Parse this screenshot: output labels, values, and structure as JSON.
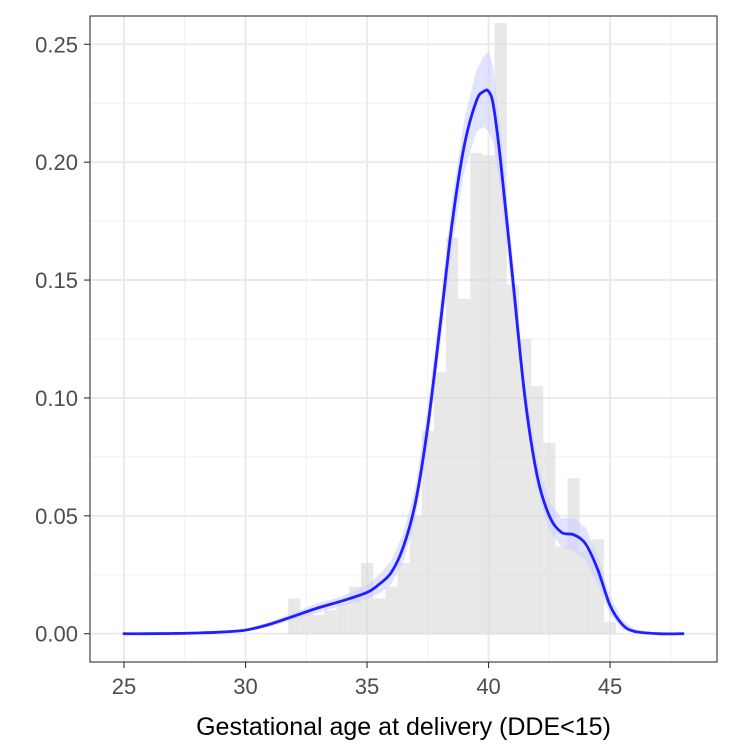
{
  "chart_data": {
    "type": "histogram",
    "title": "",
    "xlabel": "Gestational age at delivery (DDE<15)",
    "ylabel": "",
    "xlim": [
      23.6,
      49.4
    ],
    "ylim": [
      -0.012,
      0.262
    ],
    "x_ticks": [
      25,
      30,
      35,
      40,
      45
    ],
    "x_tick_labels": [
      "25",
      "30",
      "35",
      "40",
      "45"
    ],
    "y_ticks": [
      0.0,
      0.05,
      0.1,
      0.15,
      0.2,
      0.25
    ],
    "y_tick_labels": [
      "0.00",
      "0.05",
      "0.10",
      "0.15",
      "0.20",
      "0.25"
    ],
    "grid": true,
    "histogram": {
      "bin_width": 0.5,
      "color": "#d9d9d9",
      "bins": [
        {
          "x0": 31.75,
          "x1": 32.25,
          "value": 0.015
        },
        {
          "x0": 32.25,
          "x1": 32.75,
          "value": 0.01
        },
        {
          "x0": 32.75,
          "x1": 33.25,
          "value": 0.008
        },
        {
          "x0": 33.25,
          "x1": 33.75,
          "value": 0.01
        },
        {
          "x0": 33.75,
          "x1": 34.25,
          "value": 0.013
        },
        {
          "x0": 34.25,
          "x1": 34.75,
          "value": 0.02
        },
        {
          "x0": 34.75,
          "x1": 35.25,
          "value": 0.03
        },
        {
          "x0": 35.25,
          "x1": 35.75,
          "value": 0.015
        },
        {
          "x0": 35.75,
          "x1": 36.25,
          "value": 0.02
        },
        {
          "x0": 36.25,
          "x1": 36.75,
          "value": 0.03
        },
        {
          "x0": 36.75,
          "x1": 37.25,
          "value": 0.05
        },
        {
          "x0": 37.25,
          "x1": 37.75,
          "value": 0.086
        },
        {
          "x0": 37.75,
          "x1": 38.25,
          "value": 0.111
        },
        {
          "x0": 38.25,
          "x1": 38.75,
          "value": 0.168
        },
        {
          "x0": 38.75,
          "x1": 39.25,
          "value": 0.142
        },
        {
          "x0": 39.25,
          "x1": 39.75,
          "value": 0.204
        },
        {
          "x0": 39.75,
          "x1": 40.25,
          "value": 0.203
        },
        {
          "x0": 40.25,
          "x1": 40.75,
          "value": 0.259
        },
        {
          "x0": 40.75,
          "x1": 41.25,
          "value": 0.148
        },
        {
          "x0": 41.25,
          "x1": 41.75,
          "value": 0.125
        },
        {
          "x0": 41.75,
          "x1": 42.25,
          "value": 0.105
        },
        {
          "x0": 42.25,
          "x1": 42.75,
          "value": 0.081
        },
        {
          "x0": 42.75,
          "x1": 43.25,
          "value": 0.037
        },
        {
          "x0": 43.25,
          "x1": 43.75,
          "value": 0.066
        },
        {
          "x0": 43.75,
          "x1": 44.25,
          "value": 0.035
        },
        {
          "x0": 44.25,
          "x1": 44.75,
          "value": 0.04
        },
        {
          "x0": 44.75,
          "x1": 45.25,
          "value": 0.005
        }
      ]
    },
    "density": {
      "color": "#1f1fff",
      "band_color": "#c9ccff",
      "x": [
        25,
        26,
        27,
        28,
        29,
        30,
        31,
        32,
        33,
        34,
        35,
        35.5,
        36,
        36.5,
        37,
        37.5,
        38,
        38.5,
        39,
        39.5,
        39.8,
        40,
        40.2,
        40.5,
        41,
        41.5,
        42,
        42.5,
        43,
        43.5,
        44,
        44.5,
        45,
        45.5,
        46,
        47,
        48
      ],
      "y": [
        0.0,
        0.0,
        0.0001,
        0.0003,
        0.0007,
        0.0015,
        0.004,
        0.0075,
        0.011,
        0.014,
        0.0175,
        0.021,
        0.026,
        0.037,
        0.056,
        0.088,
        0.13,
        0.174,
        0.207,
        0.226,
        0.23,
        0.23,
        0.224,
        0.2,
        0.15,
        0.1,
        0.067,
        0.05,
        0.043,
        0.042,
        0.038,
        0.027,
        0.012,
        0.004,
        0.001,
        0.0,
        0.0
      ],
      "lower": [
        0.0,
        0.0,
        0.0,
        0.0002,
        0.0005,
        0.0011,
        0.003,
        0.006,
        0.009,
        0.012,
        0.0145,
        0.017,
        0.021,
        0.031,
        0.049,
        0.08,
        0.121,
        0.164,
        0.196,
        0.213,
        0.215,
        0.213,
        0.208,
        0.188,
        0.141,
        0.093,
        0.061,
        0.044,
        0.037,
        0.035,
        0.031,
        0.021,
        0.008,
        0.002,
        0.0,
        0.0,
        0.0
      ],
      "upper": [
        0.0002,
        0.0002,
        0.0004,
        0.0006,
        0.001,
        0.0019,
        0.005,
        0.009,
        0.013,
        0.016,
        0.0205,
        0.025,
        0.031,
        0.043,
        0.063,
        0.096,
        0.139,
        0.184,
        0.218,
        0.239,
        0.245,
        0.247,
        0.24,
        0.212,
        0.159,
        0.107,
        0.073,
        0.056,
        0.049,
        0.049,
        0.045,
        0.033,
        0.016,
        0.006,
        0.002,
        0.0004,
        0.0002
      ]
    }
  }
}
